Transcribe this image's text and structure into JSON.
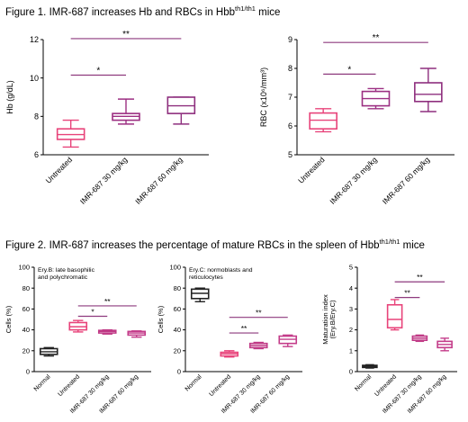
{
  "figure1": {
    "title_text": "Figure 1.  IMR-687 increases Hb and RBCs in Hbb",
    "title_sup": "th1/th1",
    "title_tail": " mice"
  },
  "figure2": {
    "title_text": "Figure 2.  IMR-687 increases the percentage of mature RBCs in the spleen of Hbb",
    "title_sup": "th1/th1",
    "title_tail": " mice"
  },
  "colors": {
    "untreated": "#e8437a",
    "dose30": "#9c2f82",
    "dose60": "#8e2f7e",
    "normal": "#222222",
    "untreated_f2": "#e8437a",
    "dose30_f2": "#c03a86",
    "dose60_f2": "#c43c8a",
    "sig_line": "#8e3a7e"
  },
  "chart_data": [
    {
      "id": "hb",
      "type": "box",
      "ylabel": "Hb (g/dL)",
      "ylim": [
        6,
        12
      ],
      "yticks": [
        6,
        8,
        10,
        12
      ],
      "categories": [
        "Untreated",
        "IMR-687 30 mg/kg",
        "IMR-687 60 mg/kg"
      ],
      "boxes": [
        {
          "min": 6.4,
          "q1": 6.8,
          "median": 7.05,
          "q3": 7.35,
          "max": 7.8,
          "color": "untreated"
        },
        {
          "min": 7.6,
          "q1": 7.8,
          "median": 8.0,
          "q3": 8.15,
          "max": 8.9,
          "color": "dose30"
        },
        {
          "min": 7.6,
          "q1": 8.15,
          "median": 8.55,
          "q3": 9.0,
          "max": 9.0,
          "color": "dose60"
        }
      ],
      "significance": [
        {
          "from": 0,
          "to": 1,
          "y": 10.15,
          "label": "*"
        },
        {
          "from": 0,
          "to": 2,
          "y": 12.05,
          "label": "**"
        }
      ]
    },
    {
      "id": "rbc",
      "type": "box",
      "ylabel": "RBC (x10⁶/mm³)",
      "ylim": [
        5,
        9
      ],
      "yticks": [
        5,
        6,
        7,
        8,
        9
      ],
      "categories": [
        "Untreated",
        "IMR-687 30 mg/kg",
        "IMR-687 60 mg/kg"
      ],
      "boxes": [
        {
          "min": 5.8,
          "q1": 5.9,
          "median": 6.2,
          "q3": 6.45,
          "max": 6.6,
          "color": "untreated"
        },
        {
          "min": 6.6,
          "q1": 6.7,
          "median": 6.95,
          "q3": 7.2,
          "max": 7.3,
          "color": "dose30"
        },
        {
          "min": 6.5,
          "q1": 6.85,
          "median": 7.1,
          "q3": 7.5,
          "max": 8.0,
          "color": "dose60"
        }
      ],
      "significance": [
        {
          "from": 0,
          "to": 1,
          "y": 7.8,
          "label": "*"
        },
        {
          "from": 0,
          "to": 2,
          "y": 8.9,
          "label": "**"
        }
      ]
    },
    {
      "id": "eryb",
      "type": "box",
      "annotation": "Ery.B: late basophilic\nand polychromatic",
      "ylabel": "Cells (%)",
      "ylim": [
        0,
        100
      ],
      "yticks": [
        0,
        20,
        40,
        60,
        80,
        100
      ],
      "categories": [
        "Normal",
        "Untreated",
        "IMR-687 30 mg/kg",
        "IMR-687 60 mg/kg"
      ],
      "boxes": [
        {
          "min": 15,
          "q1": 16.5,
          "median": 19,
          "q3": 22,
          "max": 23,
          "color": "normal"
        },
        {
          "min": 38,
          "q1": 40,
          "median": 43,
          "q3": 47,
          "max": 49,
          "color": "untreated_f2"
        },
        {
          "min": 36,
          "q1": 37,
          "median": 38.5,
          "q3": 39.5,
          "max": 40,
          "color": "dose30_f2"
        },
        {
          "min": 33,
          "q1": 35,
          "median": 37,
          "q3": 38.5,
          "max": 39,
          "color": "dose60_f2"
        }
      ],
      "significance": [
        {
          "from": 1,
          "to": 2,
          "y": 53,
          "label": "*"
        },
        {
          "from": 1,
          "to": 3,
          "y": 63,
          "label": "**"
        }
      ]
    },
    {
      "id": "eryc",
      "type": "box",
      "annotation": "Ery.C: normoblasts and\nreticulocytes",
      "ylabel": "Cells (%)",
      "ylim": [
        0,
        100
      ],
      "yticks": [
        0,
        20,
        40,
        60,
        80,
        100
      ],
      "categories": [
        "Normal",
        "Untreated",
        "IMR-687 30 mg/kg",
        "IMR-687 60 mg/kg"
      ],
      "boxes": [
        {
          "min": 67,
          "q1": 70,
          "median": 75,
          "q3": 79,
          "max": 80,
          "color": "normal"
        },
        {
          "min": 14,
          "q1": 15,
          "median": 17,
          "q3": 18.5,
          "max": 20,
          "color": "untreated_f2"
        },
        {
          "min": 22,
          "q1": 23,
          "median": 25,
          "q3": 27,
          "max": 28,
          "color": "dose30_f2"
        },
        {
          "min": 24,
          "q1": 27,
          "median": 31,
          "q3": 34,
          "max": 35,
          "color": "dose60_f2"
        }
      ],
      "significance": [
        {
          "from": 1,
          "to": 2,
          "y": 37,
          "label": "**"
        },
        {
          "from": 1,
          "to": 3,
          "y": 52,
          "label": "**"
        }
      ]
    },
    {
      "id": "maturation",
      "type": "box",
      "ylabel": "Maturation index\n(Ery.B/Ery.C)",
      "ylim": [
        0,
        5
      ],
      "yticks": [
        0,
        1,
        2,
        3,
        4,
        5
      ],
      "categories": [
        "Normal",
        "Untreated",
        "IMR-687 30 mg/kg",
        "IMR-687 60 mg/kg"
      ],
      "boxes": [
        {
          "min": 0.17,
          "q1": 0.2,
          "median": 0.25,
          "q3": 0.3,
          "max": 0.33,
          "color": "normal"
        },
        {
          "min": 2.0,
          "q1": 2.1,
          "median": 2.5,
          "q3": 3.2,
          "max": 3.45,
          "color": "untreated_f2"
        },
        {
          "min": 1.45,
          "q1": 1.5,
          "median": 1.6,
          "q3": 1.7,
          "max": 1.75,
          "color": "dose30_f2"
        },
        {
          "min": 1.0,
          "q1": 1.15,
          "median": 1.3,
          "q3": 1.45,
          "max": 1.6,
          "color": "dose60_f2"
        }
      ],
      "significance": [
        {
          "from": 1,
          "to": 2,
          "y": 3.55,
          "label": "**"
        },
        {
          "from": 1,
          "to": 3,
          "y": 4.3,
          "label": "**"
        }
      ]
    }
  ]
}
